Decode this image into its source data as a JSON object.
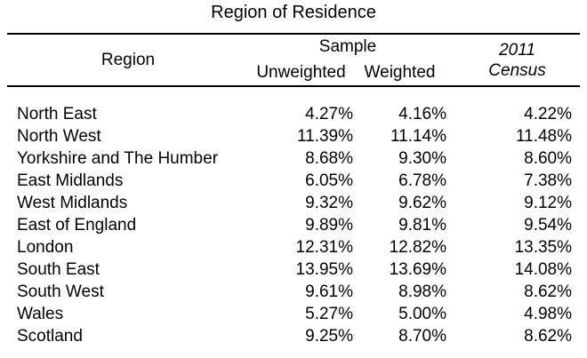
{
  "title": "Region of Residence",
  "colors": {
    "background": "#ffffff",
    "text": "#000000",
    "rule": "#000000"
  },
  "table": {
    "header": {
      "region": "Region",
      "sample_group": "Sample",
      "unweighted": "Unweighted",
      "weighted": "Weighted",
      "census_line1": "2011",
      "census_line2": "Census"
    },
    "rows": [
      {
        "region": "North East",
        "unweighted": "4.27%",
        "weighted": "4.16%",
        "census": "4.22%"
      },
      {
        "region": "North West",
        "unweighted": "11.39%",
        "weighted": "11.14%",
        "census": "11.48%"
      },
      {
        "region": "Yorkshire and The Humber",
        "unweighted": "8.68%",
        "weighted": "9.30%",
        "census": "8.60%"
      },
      {
        "region": "East Midlands",
        "unweighted": "6.05%",
        "weighted": "6.78%",
        "census": "7.38%"
      },
      {
        "region": "West Midlands",
        "unweighted": "9.32%",
        "weighted": "9.62%",
        "census": "9.12%"
      },
      {
        "region": "East of England",
        "unweighted": "9.89%",
        "weighted": "9.81%",
        "census": "9.54%"
      },
      {
        "region": "London",
        "unweighted": "12.31%",
        "weighted": "12.82%",
        "census": "13.35%"
      },
      {
        "region": "South East",
        "unweighted": "13.95%",
        "weighted": "13.69%",
        "census": "14.08%"
      },
      {
        "region": "South West",
        "unweighted": "9.61%",
        "weighted": "8.98%",
        "census": "8.62%"
      },
      {
        "region": "Wales",
        "unweighted": "5.27%",
        "weighted": "5.00%",
        "census": "4.98%"
      },
      {
        "region": "Scotland",
        "unweighted": "9.25%",
        "weighted": "8.70%",
        "census": "8.62%"
      }
    ]
  },
  "chart_data": {
    "type": "table",
    "title": "Region of Residence",
    "columns": [
      "Region",
      "Sample Unweighted",
      "Sample Weighted",
      "2011 Census"
    ],
    "categories": [
      "North East",
      "North West",
      "Yorkshire and The Humber",
      "East Midlands",
      "West Midlands",
      "East of England",
      "London",
      "South East",
      "South West",
      "Wales",
      "Scotland"
    ],
    "series": [
      {
        "name": "Sample Unweighted",
        "values": [
          4.27,
          11.39,
          8.68,
          6.05,
          9.32,
          9.89,
          12.31,
          13.95,
          9.61,
          5.27,
          9.25
        ]
      },
      {
        "name": "Sample Weighted",
        "values": [
          4.16,
          11.14,
          9.3,
          6.78,
          9.62,
          9.81,
          12.82,
          13.69,
          8.98,
          5.0,
          8.7
        ]
      },
      {
        "name": "2011 Census",
        "values": [
          4.22,
          11.48,
          8.6,
          7.38,
          9.12,
          9.54,
          13.35,
          14.08,
          8.62,
          4.98,
          8.62
        ]
      }
    ],
    "unit": "%"
  }
}
